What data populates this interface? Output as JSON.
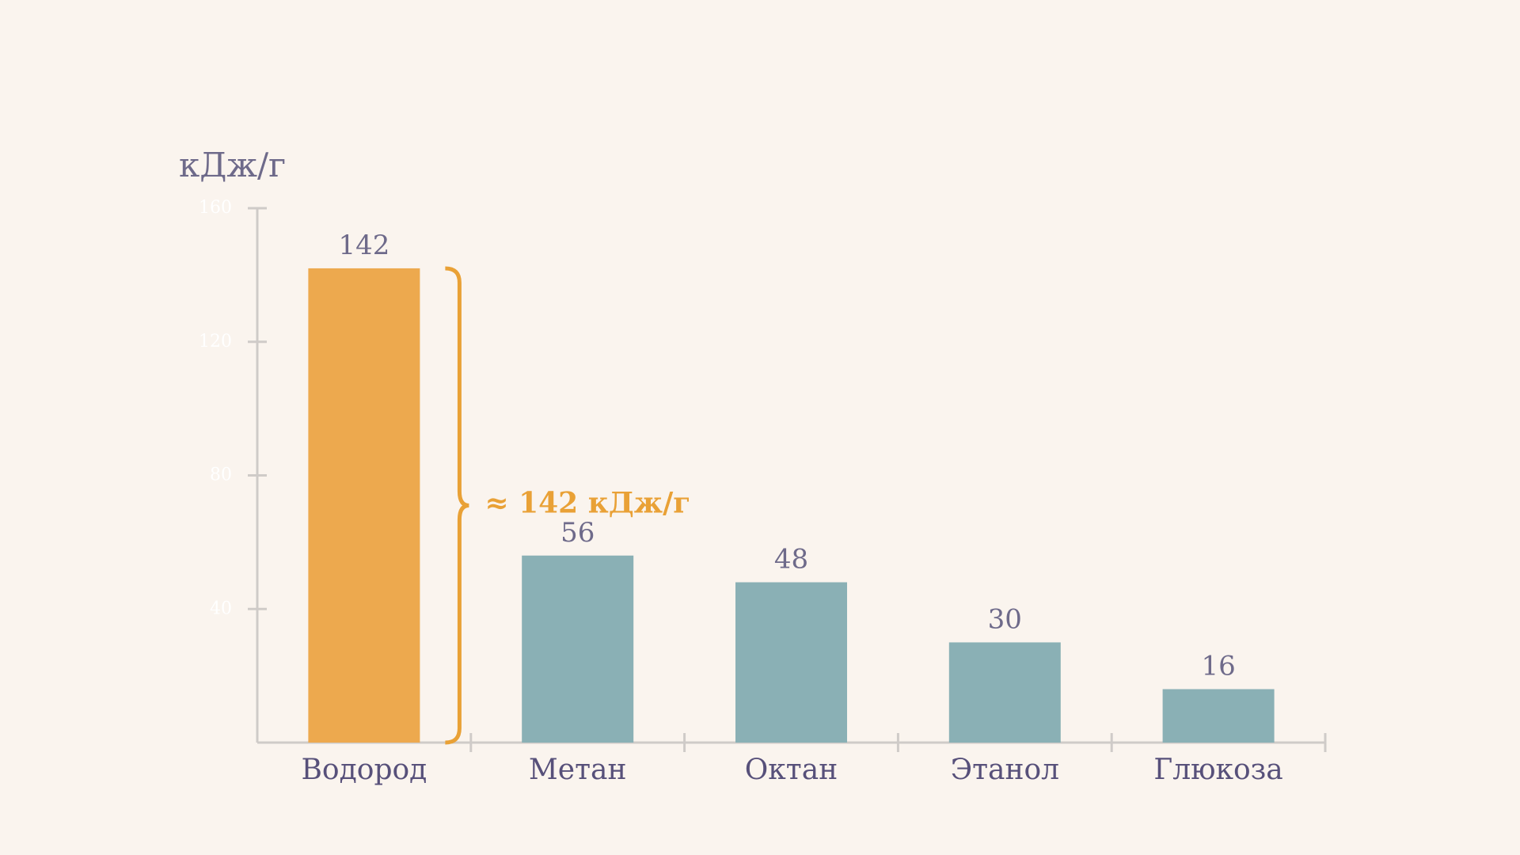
{
  "chart_data": {
    "type": "bar",
    "y_label": "кДж/г",
    "categories": [
      "Водород",
      "Метан",
      "Октан",
      "Этанол",
      "Глюкоза"
    ],
    "values": [
      142,
      56,
      48,
      30,
      16
    ],
    "colors": [
      "#eda94e",
      "#8ab0b5",
      "#8ab0b5",
      "#8ab0b5",
      "#8ab0b5"
    ],
    "ylim": [
      0,
      160
    ],
    "yticks": [
      40,
      80,
      120,
      160
    ],
    "annotation": "≈  142 кДж/г",
    "annotation_color": "#e9a136",
    "grid": false
  }
}
